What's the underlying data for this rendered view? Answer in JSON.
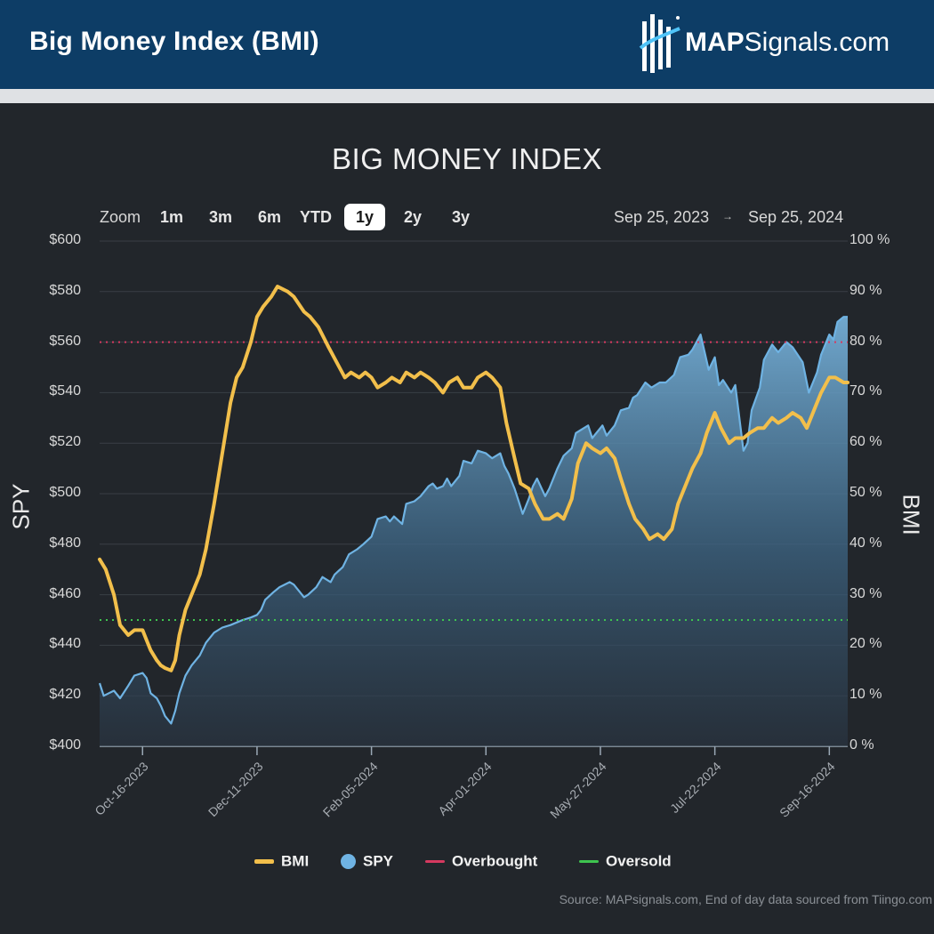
{
  "header": {
    "title": "Big Money Index (BMI)",
    "logo_text_bold": "MAP",
    "logo_text_rest": "Signals.com"
  },
  "zoom": {
    "label": "Zoom",
    "buttons": [
      "1m",
      "3m",
      "6m",
      "YTD",
      "1y",
      "2y",
      "3y"
    ],
    "active": "1y",
    "range_start": "Sep 25, 2023",
    "range_arrow": "→",
    "range_end": "Sep 25, 2024"
  },
  "legend": {
    "bmi": "BMI",
    "spy": "SPY",
    "overbought": "Overbought",
    "oversold": "Oversold"
  },
  "source": "Source: MAPsignals.com, End of day data sourced from Tiingo.com",
  "colors": {
    "bmi": "#f2bf4b",
    "spy": "#6fb3e3",
    "overbought": "#d6395f",
    "oversold": "#3ec44f",
    "background": "#22262b",
    "header": "#0d3d66"
  },
  "chart_data": {
    "type": "line",
    "title": "BIG MONEY INDEX",
    "x_domain": [
      "2023-09-25",
      "2024-09-25"
    ],
    "x_tick_labels": [
      "Oct-16-2023",
      "Dec-11-2023",
      "Feb-05-2024",
      "Apr-01-2024",
      "May-27-2024",
      "Jul-22-2024",
      "Sep-16-2024"
    ],
    "x_tick_dates": [
      "2023-10-16",
      "2023-12-11",
      "2024-02-05",
      "2024-04-01",
      "2024-05-27",
      "2024-07-22",
      "2024-09-16"
    ],
    "y_left": {
      "label": "SPY",
      "range": [
        400,
        600
      ],
      "ticks": [
        400,
        420,
        440,
        460,
        480,
        500,
        520,
        540,
        560,
        580,
        600
      ],
      "tick_labels": [
        "$400",
        "$420",
        "$440",
        "$460",
        "$480",
        "$500",
        "$520",
        "$540",
        "$560",
        "$580",
        "$600"
      ]
    },
    "y_right": {
      "label": "BMI",
      "range": [
        0,
        100
      ],
      "ticks": [
        0,
        10,
        20,
        30,
        40,
        50,
        60,
        70,
        80,
        90,
        100
      ],
      "tick_labels": [
        "0 %",
        "10 %",
        "20 %",
        "30 %",
        "40 %",
        "50 %",
        "60 %",
        "70 %",
        "80 %",
        "90 %",
        "100 %"
      ]
    },
    "thresholds": {
      "overbought": 80,
      "oversold": 25
    },
    "legend_position": "bottom-center",
    "series": [
      {
        "name": "SPY",
        "axis": "left",
        "style": "area",
        "points": [
          [
            "2023-09-25",
            425
          ],
          [
            "2023-09-27",
            420
          ],
          [
            "2023-10-02",
            422
          ],
          [
            "2023-10-05",
            419
          ],
          [
            "2023-10-09",
            424
          ],
          [
            "2023-10-12",
            428
          ],
          [
            "2023-10-16",
            429
          ],
          [
            "2023-10-18",
            427
          ],
          [
            "2023-10-20",
            421
          ],
          [
            "2023-10-23",
            419
          ],
          [
            "2023-10-25",
            416
          ],
          [
            "2023-10-27",
            412
          ],
          [
            "2023-10-30",
            409
          ],
          [
            "2023-11-01",
            414
          ],
          [
            "2023-11-03",
            421
          ],
          [
            "2023-11-06",
            428
          ],
          [
            "2023-11-09",
            432
          ],
          [
            "2023-11-13",
            436
          ],
          [
            "2023-11-16",
            441
          ],
          [
            "2023-11-20",
            445
          ],
          [
            "2023-11-24",
            447
          ],
          [
            "2023-11-28",
            448
          ],
          [
            "2023-12-01",
            449
          ],
          [
            "2023-12-04",
            450
          ],
          [
            "2023-12-08",
            451
          ],
          [
            "2023-12-11",
            452
          ],
          [
            "2023-12-13",
            454
          ],
          [
            "2023-12-15",
            458
          ],
          [
            "2023-12-19",
            461
          ],
          [
            "2023-12-22",
            463
          ],
          [
            "2023-12-27",
            465
          ],
          [
            "2023-12-29",
            464
          ],
          [
            "2024-01-03",
            459
          ],
          [
            "2024-01-05",
            460
          ],
          [
            "2024-01-09",
            463
          ],
          [
            "2024-01-12",
            467
          ],
          [
            "2024-01-16",
            465
          ],
          [
            "2024-01-18",
            468
          ],
          [
            "2024-01-22",
            471
          ],
          [
            "2024-01-25",
            476
          ],
          [
            "2024-01-29",
            478
          ],
          [
            "2024-02-01",
            480
          ],
          [
            "2024-02-05",
            483
          ],
          [
            "2024-02-08",
            490
          ],
          [
            "2024-02-12",
            491
          ],
          [
            "2024-02-14",
            489
          ],
          [
            "2024-02-16",
            491
          ],
          [
            "2024-02-20",
            488
          ],
          [
            "2024-02-22",
            496
          ],
          [
            "2024-02-26",
            497
          ],
          [
            "2024-02-29",
            499
          ],
          [
            "2024-03-04",
            503
          ],
          [
            "2024-03-06",
            504
          ],
          [
            "2024-03-08",
            502
          ],
          [
            "2024-03-11",
            503
          ],
          [
            "2024-03-13",
            506
          ],
          [
            "2024-03-15",
            503
          ],
          [
            "2024-03-19",
            507
          ],
          [
            "2024-03-21",
            513
          ],
          [
            "2024-03-25",
            512
          ],
          [
            "2024-03-28",
            517
          ],
          [
            "2024-04-01",
            516
          ],
          [
            "2024-04-04",
            514
          ],
          [
            "2024-04-08",
            516
          ],
          [
            "2024-04-10",
            511
          ],
          [
            "2024-04-12",
            508
          ],
          [
            "2024-04-15",
            502
          ],
          [
            "2024-04-17",
            497
          ],
          [
            "2024-04-19",
            492
          ],
          [
            "2024-04-22",
            498
          ],
          [
            "2024-04-24",
            503
          ],
          [
            "2024-04-26",
            506
          ],
          [
            "2024-04-30",
            499
          ],
          [
            "2024-05-02",
            502
          ],
          [
            "2024-05-06",
            510
          ],
          [
            "2024-05-09",
            515
          ],
          [
            "2024-05-13",
            518
          ],
          [
            "2024-05-15",
            524
          ],
          [
            "2024-05-17",
            525
          ],
          [
            "2024-05-21",
            527
          ],
          [
            "2024-05-23",
            522
          ],
          [
            "2024-05-28",
            527
          ],
          [
            "2024-05-30",
            523
          ],
          [
            "2024-06-03",
            527
          ],
          [
            "2024-06-06",
            533
          ],
          [
            "2024-06-10",
            534
          ],
          [
            "2024-06-12",
            538
          ],
          [
            "2024-06-14",
            539
          ],
          [
            "2024-06-18",
            544
          ],
          [
            "2024-06-21",
            542
          ],
          [
            "2024-06-25",
            544
          ],
          [
            "2024-06-28",
            544
          ],
          [
            "2024-07-02",
            547
          ],
          [
            "2024-07-05",
            554
          ],
          [
            "2024-07-09",
            555
          ],
          [
            "2024-07-11",
            557
          ],
          [
            "2024-07-15",
            563
          ],
          [
            "2024-07-17",
            556
          ],
          [
            "2024-07-19",
            549
          ],
          [
            "2024-07-22",
            554
          ],
          [
            "2024-07-24",
            543
          ],
          [
            "2024-07-26",
            545
          ],
          [
            "2024-07-30",
            540
          ],
          [
            "2024-08-01",
            543
          ],
          [
            "2024-08-05",
            517
          ],
          [
            "2024-08-07",
            520
          ],
          [
            "2024-08-09",
            533
          ],
          [
            "2024-08-13",
            542
          ],
          [
            "2024-08-15",
            553
          ],
          [
            "2024-08-19",
            559
          ],
          [
            "2024-08-22",
            556
          ],
          [
            "2024-08-26",
            560
          ],
          [
            "2024-08-29",
            558
          ],
          [
            "2024-09-03",
            552
          ],
          [
            "2024-09-06",
            540
          ],
          [
            "2024-09-10",
            548
          ],
          [
            "2024-09-12",
            555
          ],
          [
            "2024-09-16",
            563
          ],
          [
            "2024-09-18",
            561
          ],
          [
            "2024-09-20",
            568
          ],
          [
            "2024-09-23",
            570
          ],
          [
            "2024-09-25",
            570
          ]
        ]
      },
      {
        "name": "BMI",
        "axis": "right",
        "style": "line",
        "points": [
          [
            "2023-09-25",
            37
          ],
          [
            "2023-09-28",
            35
          ],
          [
            "2023-10-02",
            30
          ],
          [
            "2023-10-05",
            24
          ],
          [
            "2023-10-09",
            22
          ],
          [
            "2023-10-12",
            23
          ],
          [
            "2023-10-16",
            23
          ],
          [
            "2023-10-18",
            21
          ],
          [
            "2023-10-20",
            19
          ],
          [
            "2023-10-23",
            17
          ],
          [
            "2023-10-25",
            16
          ],
          [
            "2023-10-27",
            15.5
          ],
          [
            "2023-10-30",
            15
          ],
          [
            "2023-11-01",
            17
          ],
          [
            "2023-11-03",
            22
          ],
          [
            "2023-11-06",
            27
          ],
          [
            "2023-11-09",
            30
          ],
          [
            "2023-11-13",
            34
          ],
          [
            "2023-11-16",
            39
          ],
          [
            "2023-11-20",
            48
          ],
          [
            "2023-11-24",
            58
          ],
          [
            "2023-11-28",
            68
          ],
          [
            "2023-12-01",
            73
          ],
          [
            "2023-12-04",
            75
          ],
          [
            "2023-12-08",
            80
          ],
          [
            "2023-12-11",
            85
          ],
          [
            "2023-12-14",
            87
          ],
          [
            "2023-12-18",
            89
          ],
          [
            "2023-12-21",
            91
          ],
          [
            "2023-12-26",
            90
          ],
          [
            "2023-12-29",
            89
          ],
          [
            "2024-01-03",
            86
          ],
          [
            "2024-01-06",
            85
          ],
          [
            "2024-01-10",
            83
          ],
          [
            "2024-01-15",
            79
          ],
          [
            "2024-01-19",
            76
          ],
          [
            "2024-01-23",
            73
          ],
          [
            "2024-01-26",
            74
          ],
          [
            "2024-01-30",
            73
          ],
          [
            "2024-02-02",
            74
          ],
          [
            "2024-02-05",
            73
          ],
          [
            "2024-02-08",
            71
          ],
          [
            "2024-02-12",
            72
          ],
          [
            "2024-02-15",
            73
          ],
          [
            "2024-02-19",
            72
          ],
          [
            "2024-02-22",
            74
          ],
          [
            "2024-02-26",
            73
          ],
          [
            "2024-02-29",
            74
          ],
          [
            "2024-03-04",
            73
          ],
          [
            "2024-03-07",
            72
          ],
          [
            "2024-03-11",
            70
          ],
          [
            "2024-03-14",
            72
          ],
          [
            "2024-03-18",
            73
          ],
          [
            "2024-03-21",
            71
          ],
          [
            "2024-03-25",
            71
          ],
          [
            "2024-03-28",
            73
          ],
          [
            "2024-04-01",
            74
          ],
          [
            "2024-04-04",
            73
          ],
          [
            "2024-04-08",
            71
          ],
          [
            "2024-04-11",
            64
          ],
          [
            "2024-04-15",
            57
          ],
          [
            "2024-04-18",
            52
          ],
          [
            "2024-04-22",
            51
          ],
          [
            "2024-04-25",
            48
          ],
          [
            "2024-04-29",
            45
          ],
          [
            "2024-05-02",
            45
          ],
          [
            "2024-05-06",
            46
          ],
          [
            "2024-05-09",
            45
          ],
          [
            "2024-05-13",
            49
          ],
          [
            "2024-05-16",
            56
          ],
          [
            "2024-05-20",
            60
          ],
          [
            "2024-05-23",
            59
          ],
          [
            "2024-05-27",
            58
          ],
          [
            "2024-05-30",
            59
          ],
          [
            "2024-06-03",
            57
          ],
          [
            "2024-06-06",
            53
          ],
          [
            "2024-06-10",
            48
          ],
          [
            "2024-06-13",
            45
          ],
          [
            "2024-06-17",
            43
          ],
          [
            "2024-06-20",
            41
          ],
          [
            "2024-06-24",
            42
          ],
          [
            "2024-06-27",
            41
          ],
          [
            "2024-07-01",
            43
          ],
          [
            "2024-07-04",
            48
          ],
          [
            "2024-07-08",
            52
          ],
          [
            "2024-07-11",
            55
          ],
          [
            "2024-07-15",
            58
          ],
          [
            "2024-07-18",
            62
          ],
          [
            "2024-07-22",
            66
          ],
          [
            "2024-07-25",
            63
          ],
          [
            "2024-07-29",
            60
          ],
          [
            "2024-08-01",
            61
          ],
          [
            "2024-08-05",
            61
          ],
          [
            "2024-08-08",
            62
          ],
          [
            "2024-08-12",
            63
          ],
          [
            "2024-08-15",
            63
          ],
          [
            "2024-08-19",
            65
          ],
          [
            "2024-08-22",
            64
          ],
          [
            "2024-08-26",
            65
          ],
          [
            "2024-08-29",
            66
          ],
          [
            "2024-09-02",
            65
          ],
          [
            "2024-09-05",
            63
          ],
          [
            "2024-09-09",
            67
          ],
          [
            "2024-09-12",
            70
          ],
          [
            "2024-09-16",
            73
          ],
          [
            "2024-09-19",
            73
          ],
          [
            "2024-09-23",
            72
          ],
          [
            "2024-09-25",
            72
          ]
        ]
      }
    ]
  }
}
